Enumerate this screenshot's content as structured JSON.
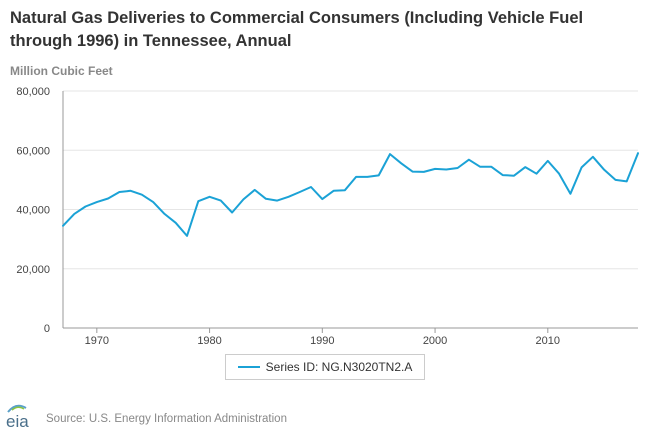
{
  "chart_data": {
    "type": "line",
    "title": "Natural Gas Deliveries to Commercial Consumers (Including Vehicle Fuel through 1996) in Tennessee, Annual",
    "ylabel": "Million Cubic Feet",
    "xlabel": "",
    "x": [
      1967,
      1968,
      1969,
      1970,
      1971,
      1972,
      1973,
      1974,
      1975,
      1976,
      1977,
      1978,
      1979,
      1980,
      1981,
      1982,
      1983,
      1984,
      1985,
      1986,
      1987,
      1988,
      1989,
      1990,
      1991,
      1992,
      1993,
      1994,
      1995,
      1996,
      1997,
      1998,
      1999,
      2000,
      2001,
      2002,
      2003,
      2004,
      2005,
      2006,
      2007,
      2008,
      2009,
      2010,
      2011,
      2012,
      2013,
      2014,
      2015,
      2016,
      2017,
      2018
    ],
    "series": [
      {
        "name": "Series ID: NG.N3020TN2.A",
        "color": "#1ba2d6",
        "values": [
          34500,
          38500,
          41000,
          42500,
          43700,
          45900,
          46300,
          45000,
          42500,
          38500,
          35500,
          31100,
          42800,
          44300,
          43000,
          39000,
          43400,
          46600,
          43600,
          43000,
          44300,
          45900,
          47600,
          43500,
          46300,
          46500,
          51000,
          51000,
          51500,
          58700,
          55600,
          52800,
          52700,
          53700,
          53500,
          54000,
          56800,
          54400,
          54400,
          51600,
          51400,
          54300,
          52100,
          56400,
          52100,
          45300,
          54200,
          57800,
          53400,
          50000,
          49500,
          59000
        ]
      }
    ],
    "xlim": [
      1967,
      2018
    ],
    "ylim": [
      0,
      80000
    ],
    "yticks": [
      0,
      20000,
      40000,
      60000,
      80000
    ],
    "ytick_labels": [
      "0",
      "20,000",
      "40,000",
      "60,000",
      "80,000"
    ],
    "xticks": [
      1970,
      1980,
      1990,
      2000,
      2010
    ],
    "xtick_labels": [
      "1970",
      "1980",
      "1990",
      "2000",
      "2010"
    ],
    "grid": "horizontal",
    "legend": "bottom-center"
  },
  "source": {
    "logo_text": "eia",
    "text": "Source: U.S. Energy Information Administration"
  }
}
